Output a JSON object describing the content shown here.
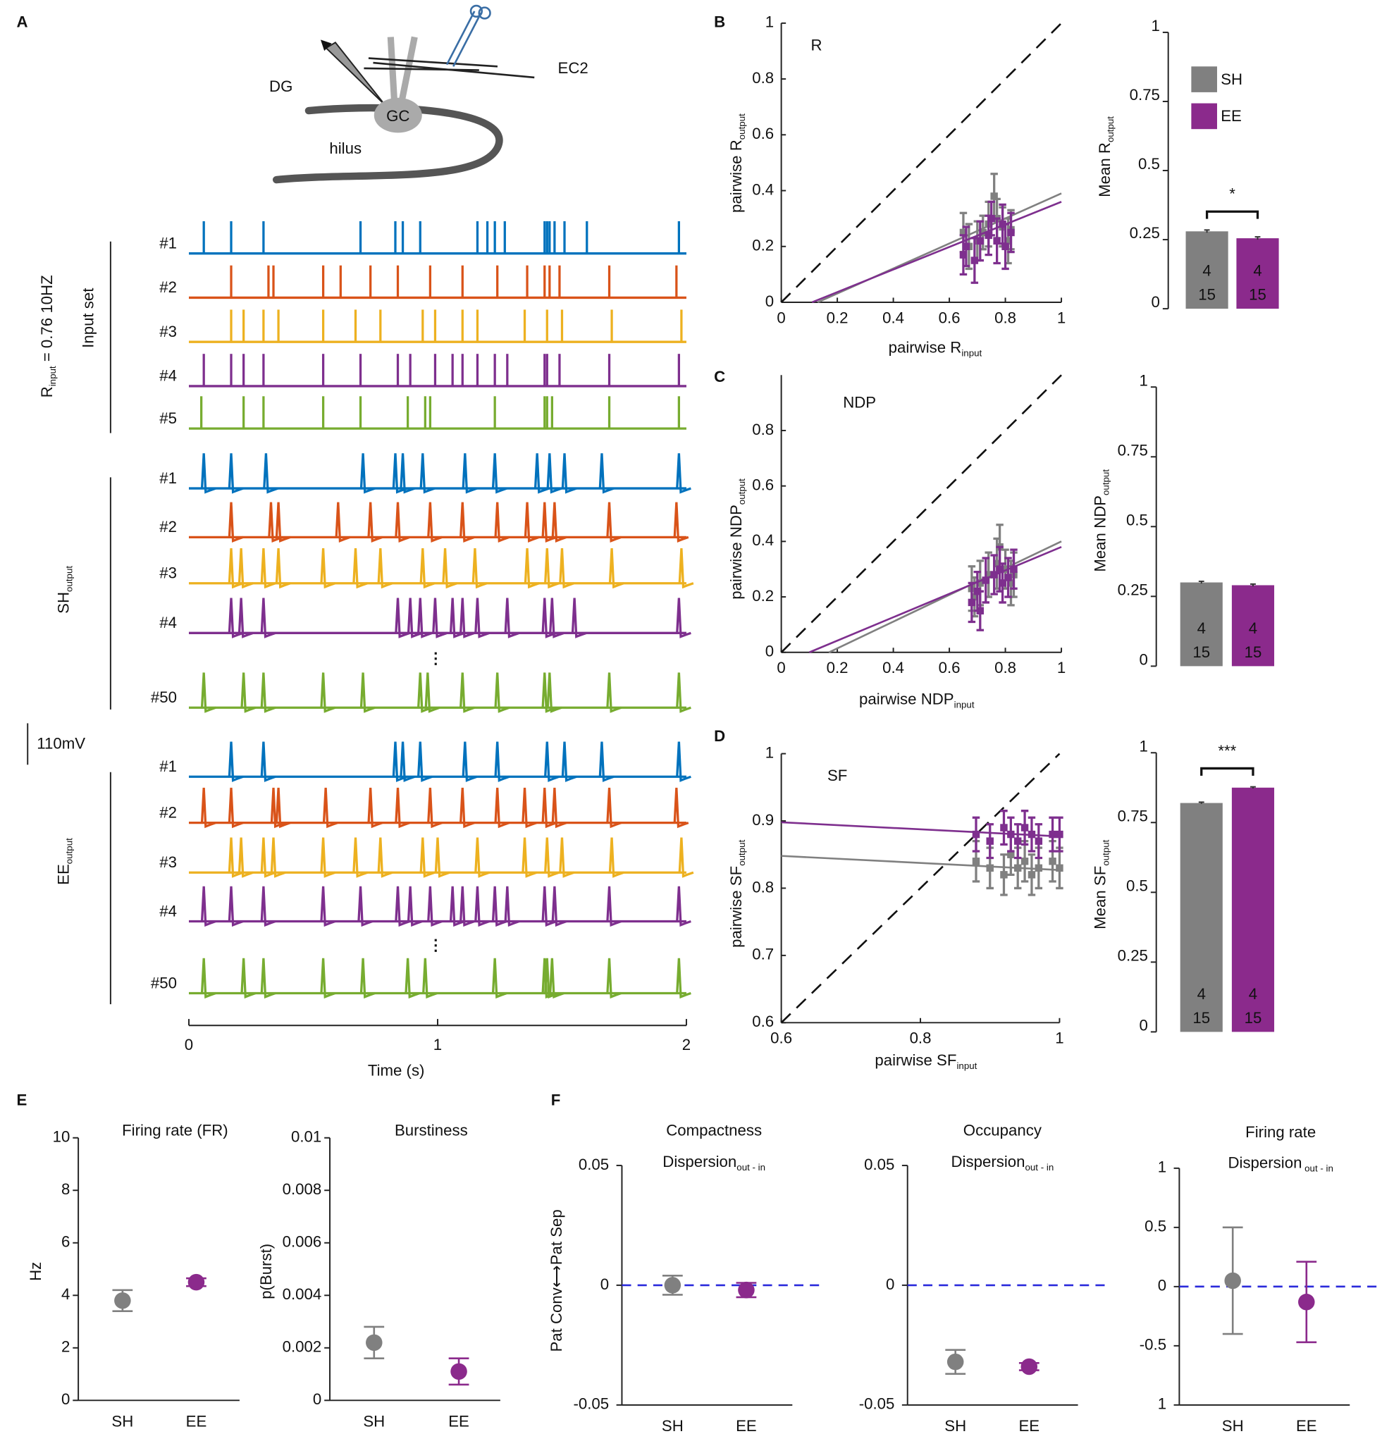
{
  "chart_data": [
    {
      "type": "diagram",
      "panel": "A",
      "labels": [
        "DG",
        "EC2",
        "GC",
        "hilus"
      ]
    },
    {
      "type": "traces",
      "xlim": [
        0,
        2
      ],
      "xticks": [
        0,
        1,
        2
      ],
      "xlabel": "Time (s)",
      "ellipsis": "⋮",
      "scale_bar": "110mV",
      "groups": [
        {
          "title": "Input set",
          "title2": {
            "text": "R",
            "sub": "input",
            "after": " = 0.76 10HZ"
          },
          "kind": "input",
          "series": [
            {
              "name": "#1",
              "color": "#0072bd",
              "spikes": [
                0.06,
                0.17,
                0.3,
                0.69,
                0.83,
                0.86,
                0.93,
                1.16,
                1.2,
                1.23,
                1.27,
                1.43,
                1.44,
                1.45,
                1.47,
                1.51,
                1.6,
                1.97
              ]
            },
            {
              "name": "#2",
              "color": "#d95319",
              "spikes": [
                0.17,
                0.32,
                0.34,
                0.54,
                0.61,
                0.73,
                0.84,
                0.97,
                1.1,
                1.24,
                1.36,
                1.43,
                1.45,
                1.49,
                1.69,
                1.96
              ]
            },
            {
              "name": "#3",
              "color": "#edb120",
              "spikes": [
                0.17,
                0.22,
                0.3,
                0.36,
                0.54,
                0.67,
                0.77,
                0.94,
                0.99,
                1.1,
                1.16,
                1.35,
                1.44,
                1.5,
                1.7,
                1.98
              ]
            },
            {
              "name": "#4",
              "color": "#7e2f8e",
              "spikes": [
                0.06,
                0.17,
                0.22,
                0.3,
                0.54,
                0.69,
                0.84,
                0.89,
                0.99,
                1.06,
                1.1,
                1.16,
                1.23,
                1.28,
                1.43,
                1.44,
                1.49,
                1.69,
                1.97
              ]
            },
            {
              "name": "#5",
              "color": "#77ac30",
              "spikes": [
                0.05,
                0.22,
                0.3,
                0.54,
                0.69,
                0.88,
                0.95,
                0.97,
                1.23,
                1.43,
                1.44,
                1.46,
                1.69,
                1.97
              ]
            }
          ]
        },
        {
          "title": {
            "text": "SH",
            "sub": "output"
          },
          "kind": "output",
          "series": [
            {
              "name": "#1",
              "color": "#0072bd",
              "spikes": [
                0.06,
                0.17,
                0.31,
                0.7,
                0.83,
                0.86,
                0.94,
                1.11,
                1.23,
                1.4,
                1.45,
                1.51,
                1.66,
                1.97
              ]
            },
            {
              "name": "#2",
              "color": "#d95319",
              "spikes": [
                0.17,
                0.33,
                0.36,
                0.6,
                0.73,
                0.84,
                0.97,
                1.1,
                1.24,
                1.36,
                1.43,
                1.47,
                1.69,
                1.96
              ]
            },
            {
              "name": "#3",
              "color": "#edb120",
              "spikes": [
                0.17,
                0.21,
                0.3,
                0.36,
                0.54,
                0.67,
                0.77,
                0.94,
                1.03,
                1.15,
                1.36,
                1.44,
                1.5,
                1.7,
                1.98
              ]
            },
            {
              "name": "#4",
              "color": "#7e2f8e",
              "spikes": [
                0.17,
                0.21,
                0.3,
                0.84,
                0.89,
                0.93,
                0.99,
                1.06,
                1.1,
                1.16,
                1.28,
                1.43,
                1.46,
                1.55,
                1.97
              ]
            },
            {
              "name": "#50",
              "color": "#77ac30",
              "spikes": [
                0.06,
                0.22,
                0.3,
                0.54,
                0.7,
                0.93,
                0.96,
                1.1,
                1.24,
                1.43,
                1.45,
                1.69,
                1.97
              ]
            }
          ]
        },
        {
          "title": {
            "text": "EE",
            "sub": "output"
          },
          "kind": "output",
          "series": [
            {
              "name": "#1",
              "color": "#0072bd",
              "spikes": [
                0.17,
                0.3,
                0.83,
                0.86,
                0.93,
                1.11,
                1.24,
                1.44,
                1.51,
                1.66,
                1.97
              ]
            },
            {
              "name": "#2",
              "color": "#d95319",
              "spikes": [
                0.06,
                0.17,
                0.34,
                0.36,
                0.55,
                0.73,
                0.84,
                0.97,
                1.1,
                1.24,
                1.35,
                1.43,
                1.47,
                1.69,
                1.96
              ]
            },
            {
              "name": "#3",
              "color": "#edb120",
              "spikes": [
                0.17,
                0.21,
                0.3,
                0.34,
                0.54,
                0.67,
                0.77,
                0.94,
                1.0,
                1.16,
                1.35,
                1.44,
                1.5,
                1.7,
                1.98
              ]
            },
            {
              "name": "#4",
              "color": "#7e2f8e",
              "spikes": [
                0.06,
                0.17,
                0.3,
                0.54,
                0.69,
                0.84,
                0.89,
                0.97,
                1.06,
                1.1,
                1.16,
                1.23,
                1.28,
                1.43,
                1.47,
                1.69,
                1.97
              ]
            },
            {
              "name": "#50",
              "color": "#77ac30",
              "spikes": [
                0.06,
                0.22,
                0.3,
                0.54,
                0.7,
                0.88,
                0.95,
                1.23,
                1.43,
                1.44,
                1.46,
                1.69,
                1.97
              ]
            }
          ]
        }
      ]
    },
    {
      "type": "scatter",
      "panel": "B",
      "title": "R",
      "xlabel": {
        "text": "pairwise R",
        "sub": "input"
      },
      "ylabel": {
        "text": "pairwise R",
        "sub": "output"
      },
      "xlim": [
        0,
        1
      ],
      "ylim": [
        0,
        1
      ],
      "xticks": [
        0,
        0.2,
        0.4,
        0.6,
        0.8,
        1
      ],
      "yticks": [
        0,
        0.2,
        0.4,
        0.6,
        0.8,
        1
      ],
      "identity": true,
      "series": [
        {
          "color": "#808080",
          "x": [
            0.65,
            0.67,
            0.7,
            0.72,
            0.74,
            0.76,
            0.77,
            0.79,
            0.81,
            0.82
          ],
          "y": [
            0.25,
            0.2,
            0.22,
            0.25,
            0.28,
            0.38,
            0.3,
            0.27,
            0.22,
            0.26
          ],
          "errors": [
            0.07,
            0.08,
            0.07,
            0.06,
            0.08,
            0.08,
            0.07,
            0.07,
            0.08,
            0.07
          ],
          "fit": {
            "x": [
              0.13,
              1
            ],
            "y": [
              0,
              0.39
            ]
          }
        },
        {
          "color": "#7e2f8e",
          "x": [
            0.65,
            0.66,
            0.69,
            0.71,
            0.74,
            0.75,
            0.77,
            0.79,
            0.8,
            0.82
          ],
          "y": [
            0.17,
            0.2,
            0.15,
            0.22,
            0.24,
            0.3,
            0.22,
            0.28,
            0.2,
            0.25
          ],
          "errors": [
            0.07,
            0.07,
            0.08,
            0.07,
            0.07,
            0.06,
            0.08,
            0.07,
            0.08,
            0.07
          ],
          "fit": {
            "x": [
              0.11,
              1
            ],
            "y": [
              0,
              0.36
            ]
          }
        }
      ]
    },
    {
      "type": "bar",
      "ylabel": {
        "text": "Mean R",
        "sub": "output"
      },
      "ylim": [
        0,
        1
      ],
      "yticks": [
        0,
        0.25,
        0.5,
        0.75,
        1
      ],
      "legend": "top-right",
      "significance": "*",
      "series": [
        {
          "name": "SH",
          "color": "#808080",
          "values": [
            0.28
          ],
          "errors": [
            0.005
          ],
          "n": [
            4,
            15
          ]
        },
        {
          "name": "EE",
          "color": "#8b2a8c",
          "values": [
            0.255
          ],
          "errors": [
            0.005
          ],
          "n": [
            4,
            15
          ]
        }
      ]
    },
    {
      "type": "scatter",
      "panel": "C",
      "title": "NDP",
      "xlabel": {
        "text": "pairwise NDP",
        "sub": "input"
      },
      "ylabel": {
        "text": "pairwise NDP",
        "sub": "output"
      },
      "xlim": [
        0,
        1
      ],
      "ylim": [
        0,
        1
      ],
      "xticks": [
        0,
        0.2,
        0.4,
        0.6,
        0.8,
        1
      ],
      "yticks": [
        0,
        0.2,
        0.4,
        0.6,
        0.8
      ],
      "identity": true,
      "series": [
        {
          "color": "#808080",
          "x": [
            0.68,
            0.69,
            0.71,
            0.74,
            0.77,
            0.78,
            0.8,
            0.82,
            0.83
          ],
          "y": [
            0.23,
            0.2,
            0.25,
            0.28,
            0.32,
            0.38,
            0.3,
            0.25,
            0.28
          ],
          "errors": [
            0.08,
            0.07,
            0.08,
            0.08,
            0.09,
            0.08,
            0.07,
            0.08,
            0.08
          ],
          "fit": {
            "x": [
              0.17,
              1
            ],
            "y": [
              0,
              0.4
            ]
          }
        },
        {
          "color": "#7e2f8e",
          "x": [
            0.68,
            0.7,
            0.71,
            0.73,
            0.76,
            0.78,
            0.79,
            0.81,
            0.83
          ],
          "y": [
            0.18,
            0.22,
            0.15,
            0.26,
            0.28,
            0.3,
            0.25,
            0.27,
            0.3
          ],
          "errors": [
            0.07,
            0.07,
            0.07,
            0.08,
            0.07,
            0.08,
            0.07,
            0.07,
            0.07
          ],
          "fit": {
            "x": [
              0.1,
              1
            ],
            "y": [
              0,
              0.38
            ]
          }
        }
      ]
    },
    {
      "type": "bar",
      "ylabel": {
        "text": "Mean NDP",
        "sub": "output"
      },
      "ylim": [
        0,
        1
      ],
      "yticks": [
        0,
        0.25,
        0.5,
        0.75,
        1
      ],
      "series": [
        {
          "color": "#808080",
          "values": [
            0.3
          ],
          "errors": [
            0.004
          ],
          "n": [
            4,
            15
          ]
        },
        {
          "color": "#8b2a8c",
          "values": [
            0.29
          ],
          "errors": [
            0.004
          ],
          "n": [
            4,
            15
          ]
        }
      ]
    },
    {
      "type": "scatter",
      "panel": "D",
      "title": "SF",
      "xlabel": {
        "text": "pairwise SF",
        "sub": "input"
      },
      "ylabel": {
        "text": "pairwise SF",
        "sub": "output"
      },
      "xlim": [
        0.6,
        1
      ],
      "ylim": [
        0.6,
        1
      ],
      "xticks": [
        0.6,
        0.8,
        1
      ],
      "yticks": [
        0.6,
        0.7,
        0.8,
        0.9,
        1
      ],
      "identity": true,
      "series": [
        {
          "color": "#808080",
          "x": [
            0.88,
            0.9,
            0.92,
            0.93,
            0.94,
            0.95,
            0.96,
            0.97,
            0.99,
            1.0
          ],
          "y": [
            0.84,
            0.83,
            0.82,
            0.85,
            0.83,
            0.84,
            0.82,
            0.83,
            0.84,
            0.83
          ],
          "errors": [
            0.03,
            0.03,
            0.03,
            0.03,
            0.03,
            0.03,
            0.03,
            0.03,
            0.03,
            0.03
          ],
          "fit": {
            "x": [
              0.6,
              1
            ],
            "y": [
              0.848,
              0.827
            ]
          }
        },
        {
          "color": "#7e2f8e",
          "x": [
            0.88,
            0.9,
            0.92,
            0.93,
            0.94,
            0.95,
            0.96,
            0.97,
            0.99,
            1.0
          ],
          "y": [
            0.88,
            0.87,
            0.89,
            0.88,
            0.87,
            0.89,
            0.88,
            0.87,
            0.88,
            0.88
          ],
          "errors": [
            0.025,
            0.025,
            0.025,
            0.025,
            0.025,
            0.025,
            0.025,
            0.025,
            0.025,
            0.025
          ],
          "fit": {
            "x": [
              0.6,
              1
            ],
            "y": [
              0.898,
              0.877
            ]
          }
        }
      ]
    },
    {
      "type": "bar",
      "ylabel": {
        "text": "Mean SF",
        "sub": "output"
      },
      "ylim": [
        0,
        1
      ],
      "yticks": [
        0,
        0.25,
        0.5,
        0.75,
        1
      ],
      "significance": "***",
      "series": [
        {
          "color": "#808080",
          "values": [
            0.82
          ],
          "errors": [
            0.003
          ],
          "n": [
            4,
            15
          ]
        },
        {
          "color": "#8b2a8c",
          "values": [
            0.875
          ],
          "errors": [
            0.003
          ],
          "n": [
            4,
            15
          ]
        }
      ]
    },
    {
      "type": "dot",
      "panel": "E",
      "title": "Firing rate (FR)",
      "ylabel": "Hz",
      "categories": [
        "SH",
        "EE"
      ],
      "colors": [
        "#808080",
        "#8b2a8c"
      ],
      "values": [
        3.8,
        4.5
      ],
      "errors": [
        0.4,
        0.15
      ],
      "ylim": [
        0,
        10
      ],
      "yticks": [
        0,
        2,
        4,
        6,
        8,
        10
      ]
    },
    {
      "type": "dot",
      "title": "Burstiness",
      "ylabel": "p(Burst)",
      "categories": [
        "SH",
        "EE"
      ],
      "colors": [
        "#808080",
        "#8b2a8c"
      ],
      "values": [
        0.0022,
        0.0011
      ],
      "errors": [
        0.0006,
        0.0005
      ],
      "ylim": [
        0,
        0.01
      ],
      "yticks": [
        0,
        0.002,
        0.004,
        0.006,
        0.008,
        0.01
      ]
    },
    {
      "type": "dot",
      "panel": "F",
      "title": "Compactness",
      "subtitle": {
        "text": "Dispersion",
        "sub": "out - in"
      },
      "ylabel": "Pat Conv⟷Pat Sep",
      "categories": [
        "SH",
        "EE"
      ],
      "colors": [
        "#808080",
        "#8b2a8c"
      ],
      "values": [
        0,
        -0.002
      ],
      "errors": [
        0.004,
        0.003
      ],
      "ylim": [
        -0.05,
        0.05
      ],
      "yticks": [
        -0.05,
        0,
        0.05
      ],
      "zero_line": true
    },
    {
      "type": "dot",
      "title": "Occupancy",
      "subtitle": {
        "text": "Dispersion",
        "sub": "out - in"
      },
      "categories": [
        "SH",
        "EE"
      ],
      "colors": [
        "#808080",
        "#8b2a8c"
      ],
      "values": [
        -0.032,
        -0.034
      ],
      "errors": [
        0.005,
        0.0015
      ],
      "ylim": [
        -0.05,
        0.05
      ],
      "yticks": [
        -0.05,
        0,
        0.05
      ],
      "zero_line": true
    },
    {
      "type": "dot",
      "title": "Firing rate",
      "subtitle": {
        "text": "Dispersion",
        "sub": " out - in"
      },
      "categories": [
        "SH",
        "EE"
      ],
      "colors": [
        "#808080",
        "#8b2a8c"
      ],
      "values": [
        0.05,
        -0.13
      ],
      "errors": [
        0.45,
        0.34
      ],
      "ylim": [
        -1,
        1
      ],
      "yticks": [
        {
          "value": -1,
          "label": "1"
        },
        -0.5,
        0,
        0.5,
        1
      ],
      "zero_line": true
    }
  ]
}
